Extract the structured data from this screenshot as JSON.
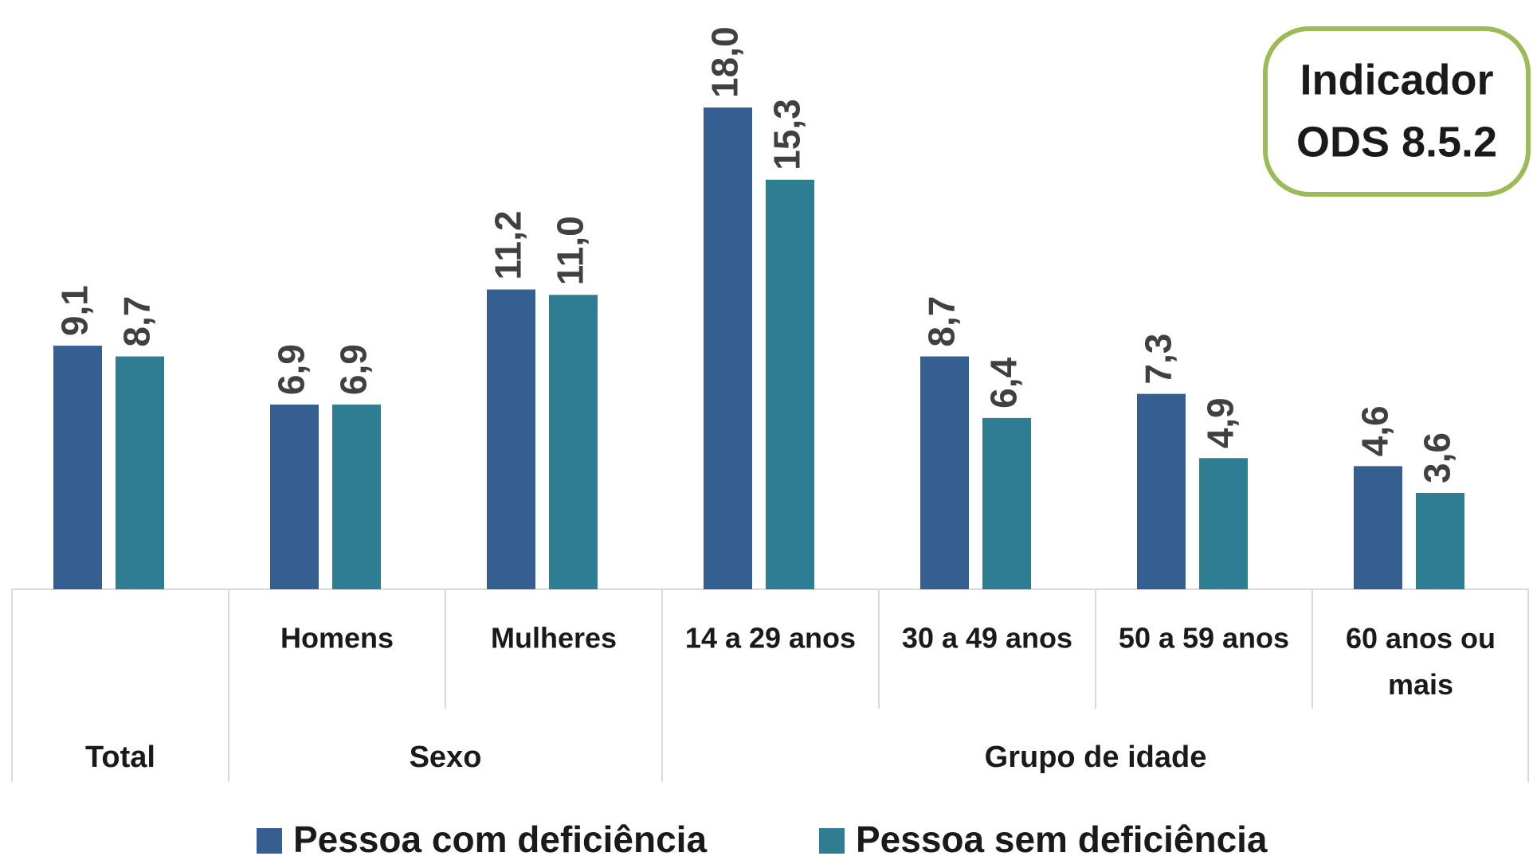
{
  "chart_data": {
    "type": "bar",
    "groups": [
      {
        "name": "Total",
        "categories": [
          null
        ]
      },
      {
        "name": "Sexo",
        "categories": [
          "Homens",
          "Mulheres"
        ]
      },
      {
        "name": "Grupo de idade",
        "categories": [
          "14 a 29 anos",
          "30 a 49 anos",
          "50 a 59 anos",
          "60 anos ou mais"
        ]
      }
    ],
    "series": [
      {
        "name": "Pessoa com deficiência",
        "color": "#365f91",
        "values": [
          9.1,
          6.9,
          11.2,
          18.0,
          8.7,
          7.3,
          4.6
        ],
        "value_labels": [
          "9,1",
          "6,9",
          "11,2",
          "18,0",
          "8,7",
          "7,3",
          "4,6"
        ]
      },
      {
        "name": "Pessoa sem deficiência",
        "color": "#2e7d92",
        "values": [
          8.7,
          6.9,
          11.0,
          15.3,
          6.4,
          4.9,
          3.6
        ],
        "value_labels": [
          "8,7",
          "6,9",
          "11,0",
          "15,3",
          "6,4",
          "4,9",
          "3,6"
        ]
      }
    ],
    "annotation": [
      "Indicador",
      "ODS 8.5.2"
    ],
    "annotation_border_color": "#9bbb59"
  }
}
